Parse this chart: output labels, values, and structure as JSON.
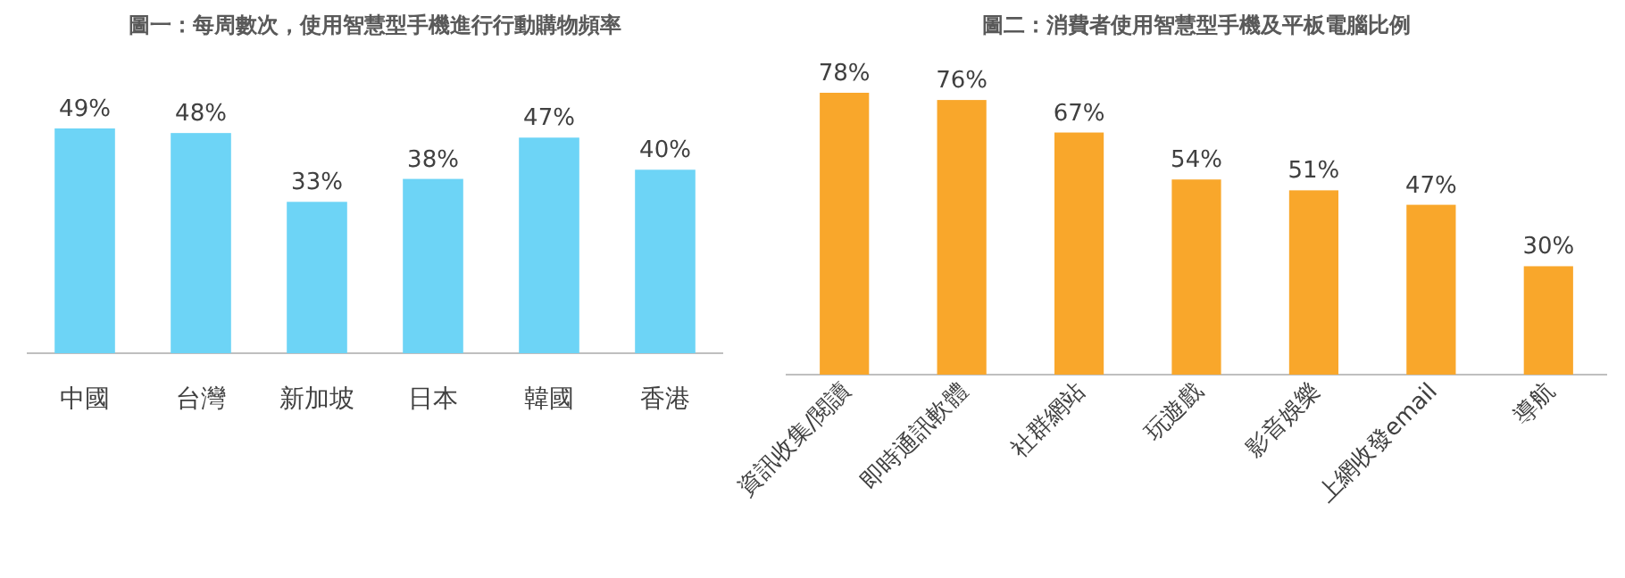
{
  "chart_data": [
    {
      "type": "bar",
      "title": "圖一：每周數次，使用智慧型手機進行行動購物頻率",
      "categories": [
        "中國",
        "台灣",
        "新加坡",
        "日本",
        "韓國",
        "香港"
      ],
      "values": [
        49,
        48,
        33,
        38,
        47,
        40
      ],
      "color": "#6dd4f6",
      "value_labels": [
        "49%",
        "48%",
        "33%",
        "38%",
        "47%",
        "40%"
      ]
    },
    {
      "type": "bar",
      "title": "圖二：消費者使用智慧型手機及平板電腦比例",
      "categories": [
        "資訊收集/閱讀",
        "即時通訊軟體",
        "社群網站",
        "玩遊戲",
        "影音娛樂",
        "上網收發email",
        "導航"
      ],
      "values": [
        78,
        76,
        67,
        54,
        51,
        47,
        30
      ],
      "color": "#f9a72b",
      "value_labels": [
        "78%",
        "76%",
        "67%",
        "54%",
        "51%",
        "47%",
        "30%"
      ]
    }
  ]
}
